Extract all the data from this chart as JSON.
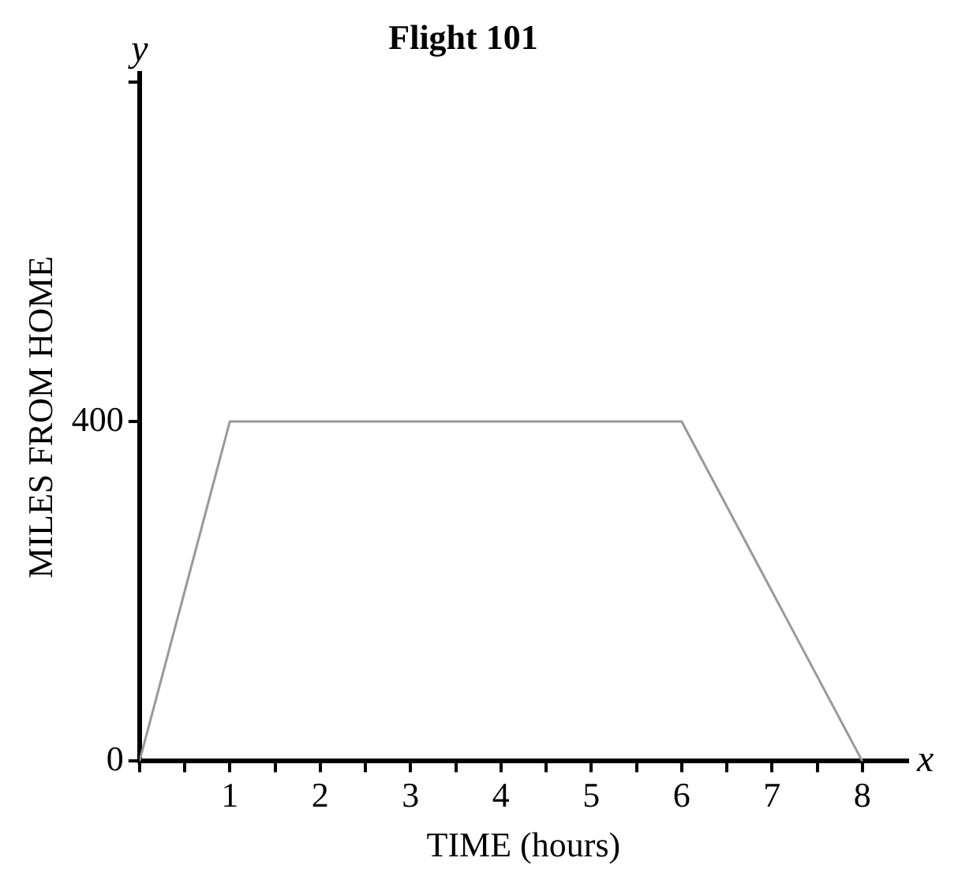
{
  "chart_data": {
    "type": "line",
    "title": "Flight 101",
    "xlabel": "TIME (hours)",
    "ylabel": "MILES FROM HOME",
    "annotations": [
      "x",
      "y"
    ],
    "x": [
      0,
      1,
      6,
      8
    ],
    "series": [
      {
        "color": "#999999",
        "values": [
          0,
          400,
          400,
          0
        ]
      }
    ],
    "xlim": [
      0,
      8.5
    ],
    "xticks": [
      {
        "value": 0,
        "label": null
      },
      {
        "value": 0.5,
        "label": null
      },
      1,
      {
        "value": 1.5,
        "label": null
      },
      2,
      {
        "value": 2.5,
        "label": null
      },
      3,
      {
        "value": 3.5,
        "label": null
      },
      4,
      {
        "value": 4.5,
        "label": null
      },
      5,
      {
        "value": 5.5,
        "label": null
      },
      6,
      {
        "value": 6.5,
        "label": null
      },
      7,
      {
        "value": 7.5,
        "label": null
      },
      8
    ],
    "ylim": [
      0,
      810
    ],
    "yticks": [
      0,
      400,
      {
        "value": 800,
        "label": null
      }
    ],
    "marker": "none",
    "line_style": "solid",
    "legend": false
  }
}
